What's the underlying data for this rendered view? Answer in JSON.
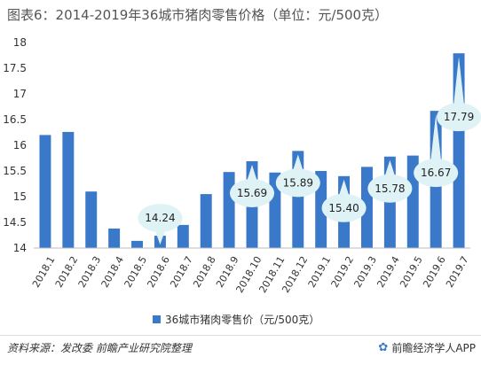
{
  "title": "图表6：2014-2019年36城市猪肉零售价格（单位：元/500克）",
  "legend": {
    "label": "36城市猪肉零售价（元/500克）",
    "color": "#3a78c9"
  },
  "footer": {
    "source": "资料来源：发改委 前瞻产业研究院整理",
    "brand": "前瞻经济学人APP",
    "brand_logo_icon": "qianzhan-logo-icon"
  },
  "chart_data": {
    "type": "bar",
    "categories": [
      "2018.1",
      "2018.2",
      "2018.3",
      "2018.4",
      "2018.5",
      "2018.6",
      "2018.7",
      "2018.8",
      "2018.9",
      "2018.10",
      "2018.11",
      "2018.12",
      "2019.1",
      "2019.2",
      "2019.3",
      "2019.4",
      "2019.5",
      "2019.6",
      "2019.7"
    ],
    "series": [
      {
        "name": "36城市猪肉零售价（元/500克）",
        "values": [
          16.2,
          16.26,
          15.1,
          14.38,
          14.14,
          14.24,
          14.45,
          15.05,
          15.48,
          15.69,
          15.47,
          15.89,
          15.5,
          15.4,
          15.58,
          15.78,
          15.8,
          16.67,
          17.79
        ]
      }
    ],
    "ylim": [
      14,
      18
    ],
    "yticks": [
      "14",
      "14.5",
      "15",
      "15.5",
      "16",
      "16.5",
      "17",
      "17.5",
      "18"
    ],
    "callouts": [
      {
        "category": "2018.6",
        "label": "14.24"
      },
      {
        "category": "2018.10",
        "label": "15.69"
      },
      {
        "category": "2018.12",
        "label": "15.89"
      },
      {
        "category": "2019.2",
        "label": "15.40"
      },
      {
        "category": "2019.4",
        "label": "15.78"
      },
      {
        "category": "2019.6",
        "label": "16.67"
      },
      {
        "category": "2019.7",
        "label": "17.79"
      }
    ],
    "grid": false,
    "legend_position": "bottom",
    "bar_color": "#3a78c9",
    "callout_color": "#dff2f5"
  }
}
